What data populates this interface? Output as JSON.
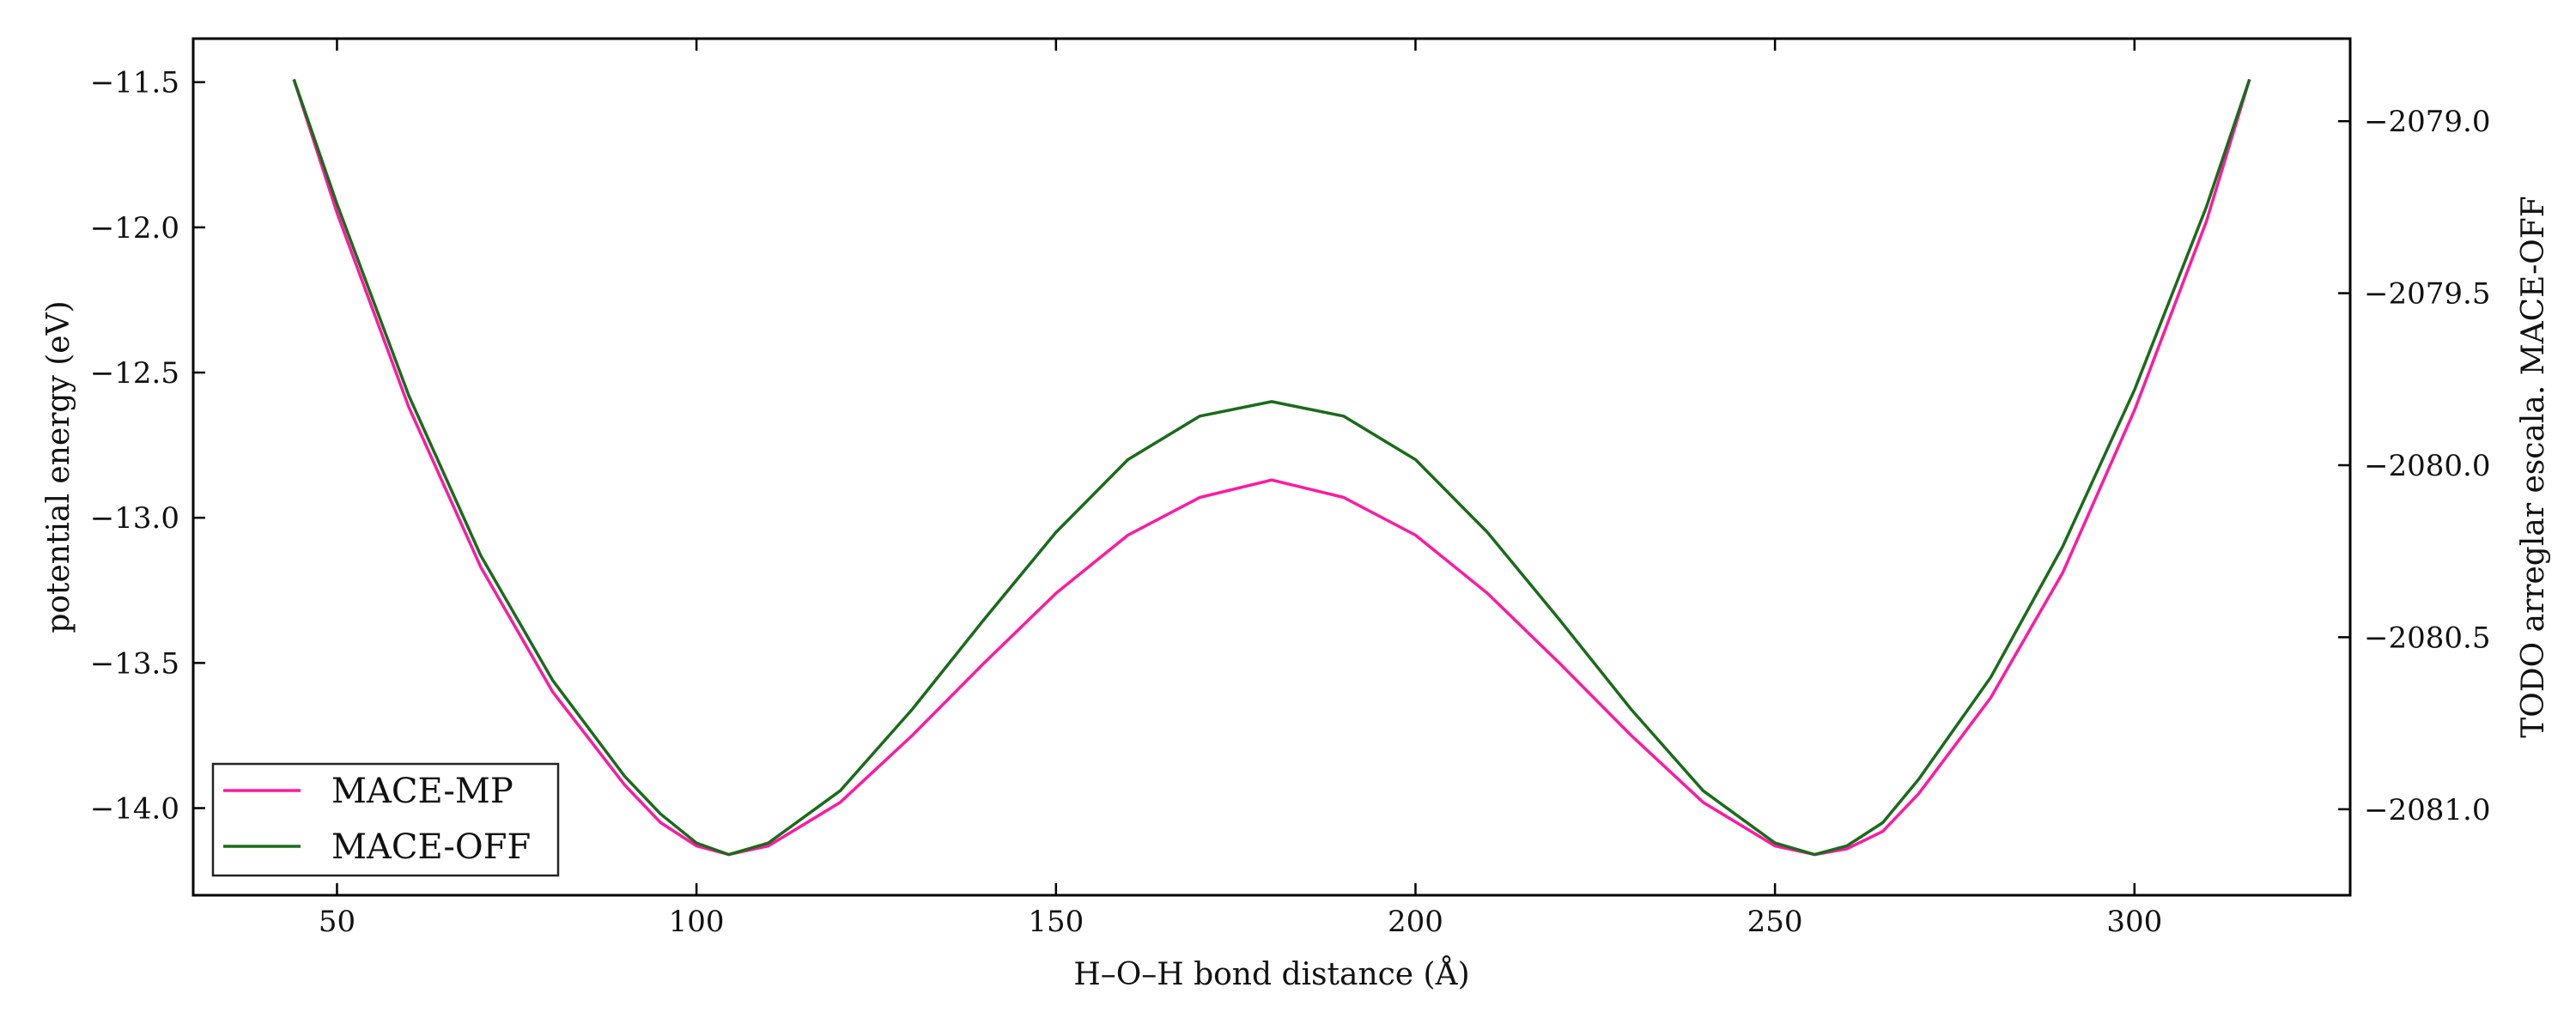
{
  "chart_data": {
    "type": "line",
    "xlabel": "H–O–H bond distance (Å)",
    "ylabel": "potential energy (eV)",
    "y2label": "TODO arreglar escala.  MACE-OFF",
    "xlim": [
      30,
      330
    ],
    "ylim": [
      -14.3,
      -11.35
    ],
    "y2lim": [
      -2081.25,
      -2078.76
    ],
    "xticks": [
      50,
      100,
      150,
      200,
      250,
      300
    ],
    "yticks": [
      -14.0,
      -13.5,
      -13.0,
      -12.5,
      -12.0,
      -11.5
    ],
    "y2ticks": [
      -2081.0,
      -2080.5,
      -2080.0,
      -2079.5,
      -2079.0
    ],
    "xtick_labels": [
      "50",
      "100",
      "150",
      "200",
      "250",
      "300"
    ],
    "ytick_labels": [
      "−14.0",
      "−13.5",
      "−13.0",
      "−12.5",
      "−12.0",
      "−11.5"
    ],
    "y2tick_labels": [
      "−2081.0",
      "−2080.5",
      "−2080.0",
      "−2079.5",
      "−2079.0"
    ],
    "grid": false,
    "legend_position": "bottom-left",
    "series": [
      {
        "name": "MACE-MP",
        "color": "#ff1aa0",
        "axis": "left",
        "points": [
          [
            44,
            -11.49
          ],
          [
            50,
            -11.95
          ],
          [
            60,
            -12.62
          ],
          [
            70,
            -13.17
          ],
          [
            80,
            -13.6
          ],
          [
            90,
            -13.92
          ],
          [
            95,
            -14.05
          ],
          [
            100,
            -14.13
          ],
          [
            104.5,
            -14.16
          ],
          [
            110,
            -14.13
          ],
          [
            120,
            -13.98
          ],
          [
            130,
            -13.75
          ],
          [
            140,
            -13.5
          ],
          [
            150,
            -13.26
          ],
          [
            160,
            -13.06
          ],
          [
            170,
            -12.93
          ],
          [
            180,
            -12.87
          ],
          [
            190,
            -12.93
          ],
          [
            200,
            -13.06
          ],
          [
            210,
            -13.26
          ],
          [
            220,
            -13.5
          ],
          [
            230,
            -13.75
          ],
          [
            240,
            -13.98
          ],
          [
            250,
            -14.13
          ],
          [
            255.5,
            -14.16
          ],
          [
            260,
            -14.14
          ],
          [
            265,
            -14.08
          ],
          [
            270,
            -13.95
          ],
          [
            280,
            -13.62
          ],
          [
            290,
            -13.19
          ],
          [
            300,
            -12.63
          ],
          [
            310,
            -11.98
          ],
          [
            316,
            -11.49
          ]
        ]
      },
      {
        "name": "MACE-OFF",
        "color": "#1a6b1a",
        "axis": "left",
        "points": [
          [
            44,
            -11.49
          ],
          [
            50,
            -11.92
          ],
          [
            60,
            -12.58
          ],
          [
            70,
            -13.13
          ],
          [
            80,
            -13.56
          ],
          [
            90,
            -13.89
          ],
          [
            95,
            -14.02
          ],
          [
            100,
            -14.12
          ],
          [
            104.5,
            -14.16
          ],
          [
            110,
            -14.12
          ],
          [
            120,
            -13.94
          ],
          [
            130,
            -13.66
          ],
          [
            140,
            -13.35
          ],
          [
            150,
            -13.05
          ],
          [
            160,
            -12.8
          ],
          [
            170,
            -12.65
          ],
          [
            180,
            -12.6
          ],
          [
            190,
            -12.65
          ],
          [
            200,
            -12.8
          ],
          [
            210,
            -13.05
          ],
          [
            220,
            -13.35
          ],
          [
            230,
            -13.66
          ],
          [
            240,
            -13.94
          ],
          [
            250,
            -14.12
          ],
          [
            255.5,
            -14.16
          ],
          [
            260,
            -14.13
          ],
          [
            265,
            -14.05
          ],
          [
            270,
            -13.9
          ],
          [
            280,
            -13.55
          ],
          [
            290,
            -13.1
          ],
          [
            300,
            -12.56
          ],
          [
            310,
            -11.93
          ],
          [
            316,
            -11.49
          ]
        ]
      }
    ]
  }
}
